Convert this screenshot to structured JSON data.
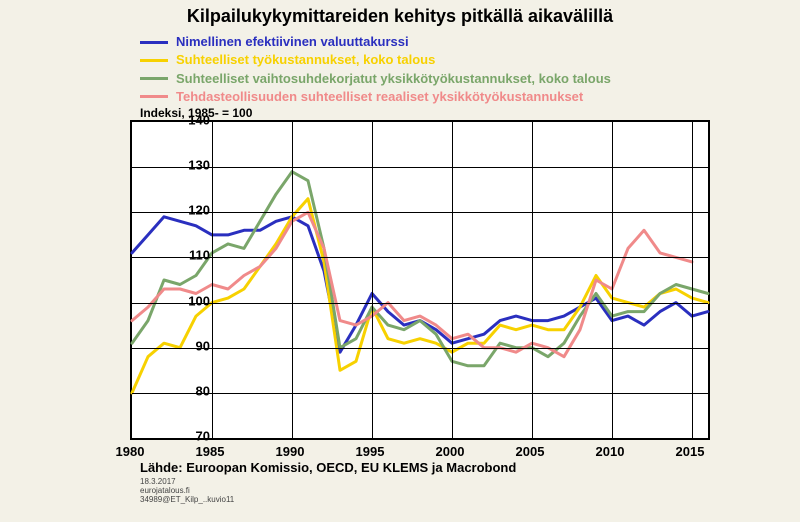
{
  "chart": {
    "type": "line",
    "title": "Kilpailukykymittareiden kehitys pitkällä aikavälillä",
    "title_fontsize": 18,
    "index_label": "Indeksi, 1985- = 100",
    "background_color": "#f3f1e7",
    "plot_background": "#ffffff",
    "grid_color": "#000000",
    "axis_color": "#000000",
    "label_fontsize": 13,
    "line_width": 3,
    "xlim": [
      1980,
      2016
    ],
    "ylim": [
      70,
      140
    ],
    "ytick_step": 10,
    "xtick_step": 5,
    "yticks": [
      70,
      80,
      90,
      100,
      110,
      120,
      130,
      140
    ],
    "xticks": [
      1980,
      1985,
      1990,
      1995,
      2000,
      2005,
      2010,
      2015
    ],
    "series": [
      {
        "name": "Nimellinen efektiivinen valuuttakurssi",
        "color": "#2a2fbf",
        "x": [
          1980,
          1981,
          1982,
          1983,
          1984,
          1985,
          1986,
          1987,
          1988,
          1989,
          1990,
          1991,
          1992,
          1993,
          1994,
          1995,
          1996,
          1997,
          1998,
          1999,
          2000,
          2001,
          2002,
          2003,
          2004,
          2005,
          2006,
          2007,
          2008,
          2009,
          2010,
          2011,
          2012,
          2013,
          2014,
          2015,
          2016
        ],
        "y": [
          111,
          115,
          119,
          118,
          117,
          115,
          115,
          116,
          116,
          118,
          119,
          117,
          107,
          89,
          95,
          102,
          98,
          95,
          96,
          94,
          91,
          92,
          93,
          96,
          97,
          96,
          96,
          97,
          99,
          101,
          96,
          97,
          95,
          98,
          100,
          97,
          98
        ]
      },
      {
        "name": "Suhteelliset työkustannukset, koko talous",
        "color": "#f7d100",
        "x": [
          1980,
          1981,
          1982,
          1983,
          1984,
          1985,
          1986,
          1987,
          1988,
          1989,
          1990,
          1991,
          1992,
          1993,
          1994,
          1995,
          1996,
          1997,
          1998,
          1999,
          2000,
          2001,
          2002,
          2003,
          2004,
          2005,
          2006,
          2007,
          2008,
          2009,
          2010,
          2011,
          2012,
          2013,
          2014,
          2015,
          2016
        ],
        "y": [
          80,
          88,
          91,
          90,
          97,
          100,
          101,
          103,
          108,
          113,
          119,
          123,
          109,
          85,
          87,
          99,
          92,
          91,
          92,
          91,
          89,
          91,
          91,
          95,
          94,
          95,
          94,
          94,
          99,
          106,
          101,
          100,
          99,
          102,
          103,
          101,
          100
        ]
      },
      {
        "name": "Suhteelliset vaihtosuhdekorjatut yksikkötyökustannukset, koko talous",
        "color": "#7aa66a",
        "x": [
          1980,
          1981,
          1982,
          1983,
          1984,
          1985,
          1986,
          1987,
          1988,
          1989,
          1990,
          1991,
          1992,
          1993,
          1994,
          1995,
          1996,
          1997,
          1998,
          1999,
          2000,
          2001,
          2002,
          2003,
          2004,
          2005,
          2006,
          2007,
          2008,
          2009,
          2010,
          2011,
          2012,
          2013,
          2014,
          2015,
          2016
        ],
        "y": [
          91,
          96,
          105,
          104,
          106,
          111,
          113,
          112,
          118,
          124,
          129,
          127,
          112,
          90,
          92,
          99,
          95,
          94,
          96,
          93,
          87,
          86,
          86,
          91,
          90,
          90,
          88,
          91,
          97,
          102,
          97,
          98,
          98,
          102,
          104,
          103,
          102
        ]
      },
      {
        "name": "Tehdasteollisuuden suhteelliset reaaliset yksikkötyökustannukset",
        "color": "#f08a8a",
        "x": [
          1980,
          1981,
          1982,
          1983,
          1984,
          1985,
          1986,
          1987,
          1988,
          1989,
          1990,
          1991,
          1992,
          1993,
          1994,
          1995,
          1996,
          1997,
          1998,
          1999,
          2000,
          2001,
          2002,
          2003,
          2004,
          2005,
          2006,
          2007,
          2008,
          2009,
          2010,
          2011,
          2012,
          2013,
          2014,
          2015
        ],
        "y": [
          96,
          99,
          103,
          103,
          102,
          104,
          103,
          106,
          108,
          112,
          118,
          120,
          112,
          96,
          95,
          97,
          100,
          96,
          97,
          95,
          92,
          93,
          90,
          90,
          89,
          91,
          90,
          88,
          94,
          105,
          103,
          112,
          116,
          111,
          110,
          109
        ]
      }
    ],
    "source": "Lähde: Euroopan Komissio, OECD, EU KLEMS ja Macrobond",
    "footer_tiny": [
      "18.3.2017",
      "eurojatalous.fi",
      "34989@ET_Kilp_..kuvio11"
    ]
  }
}
